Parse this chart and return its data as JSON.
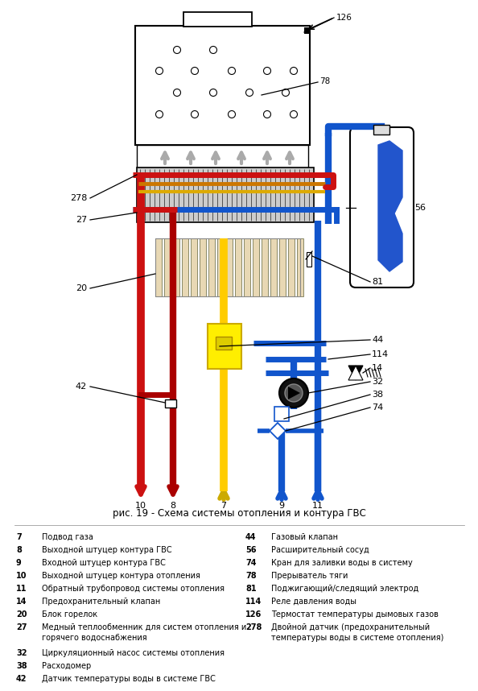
{
  "title": "рис. 19 - Схема системы отопления и контура ГВС",
  "bg_color": "#ffffff",
  "red": "#cc1111",
  "dark_red": "#aa0000",
  "blue": "#1155cc",
  "yellow": "#ffcc00",
  "gray_arrow": "#999999",
  "legend_left": [
    [
      "7",
      "Подвод газа"
    ],
    [
      "8",
      "Выходной штуцер контура ГВС"
    ],
    [
      "9",
      "Входной штуцер контура ГВС"
    ],
    [
      "10",
      "Выходной штуцер контура отопления"
    ],
    [
      "11",
      "Обратный трубопровод системы отопления"
    ],
    [
      "14",
      "Предохранительный клапан"
    ],
    [
      "20",
      "Блок горелок"
    ],
    [
      "27",
      "Медный теплообменник для систем отопления и\nгорячего водоснабжения"
    ],
    [
      "32",
      "Циркуляционный насос системы отопления"
    ],
    [
      "38",
      "Расходомер"
    ],
    [
      "42",
      "Датчик температуры воды в системе ГВС"
    ]
  ],
  "legend_right": [
    [
      "44",
      "Газовый клапан"
    ],
    [
      "56",
      "Расширительный сосуд"
    ],
    [
      "74",
      "Кран для заливки воды в систему"
    ],
    [
      "78",
      "Прерыватель тяги"
    ],
    [
      "81",
      "Поджигающий/следящий электрод"
    ],
    [
      "114",
      "Реле давления воды"
    ],
    [
      "126",
      "Термостат температуры дымовых газов"
    ],
    [
      "278",
      "Двойной датчик (предохранительный\nтемпературы воды в системе отопления)"
    ]
  ]
}
